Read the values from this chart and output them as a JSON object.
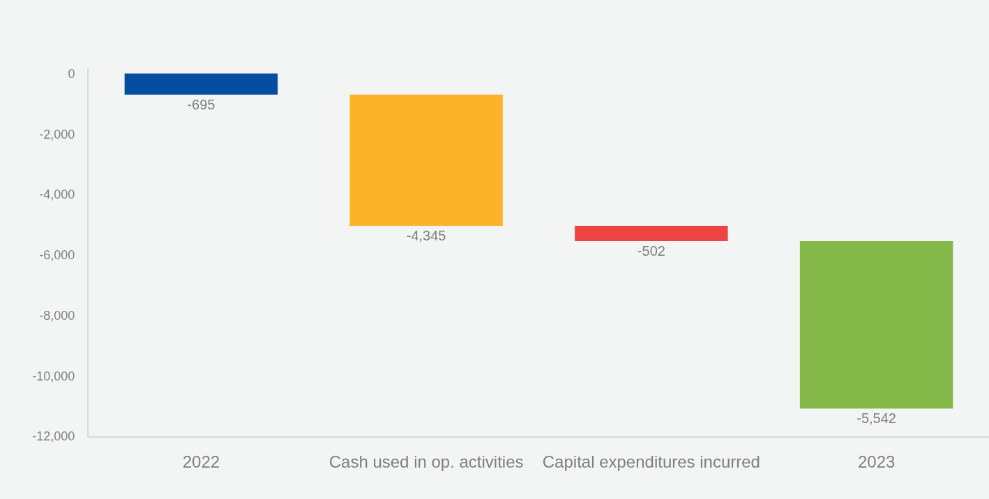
{
  "chart_data": {
    "type": "bar",
    "categories": [
      "2022",
      "Cash used in op. activities",
      "Capital expenditures incurred",
      "2023"
    ],
    "values": [
      -695,
      -4345,
      -502,
      -5542
    ],
    "value_labels": [
      "-695",
      "-4,345",
      "-502",
      "-5,542"
    ],
    "base": [
      0,
      -695,
      -5040,
      -5542
    ],
    "colors": [
      "#034ea2",
      "#fbb32a",
      "#ef4444",
      "#84b94a"
    ],
    "ylim": [
      -12000,
      150
    ],
    "yticks": [
      0,
      {
        "value": -2000,
        "label": "-2,000"
      },
      {
        "value": -4000,
        "label": "-4,000"
      },
      {
        "value": -6000,
        "label": "-6,000"
      },
      {
        "value": -8000,
        "label": "-8,000"
      },
      {
        "value": -10000,
        "label": "-10,000"
      },
      {
        "value": -12000,
        "label": "-12,000"
      }
    ]
  }
}
